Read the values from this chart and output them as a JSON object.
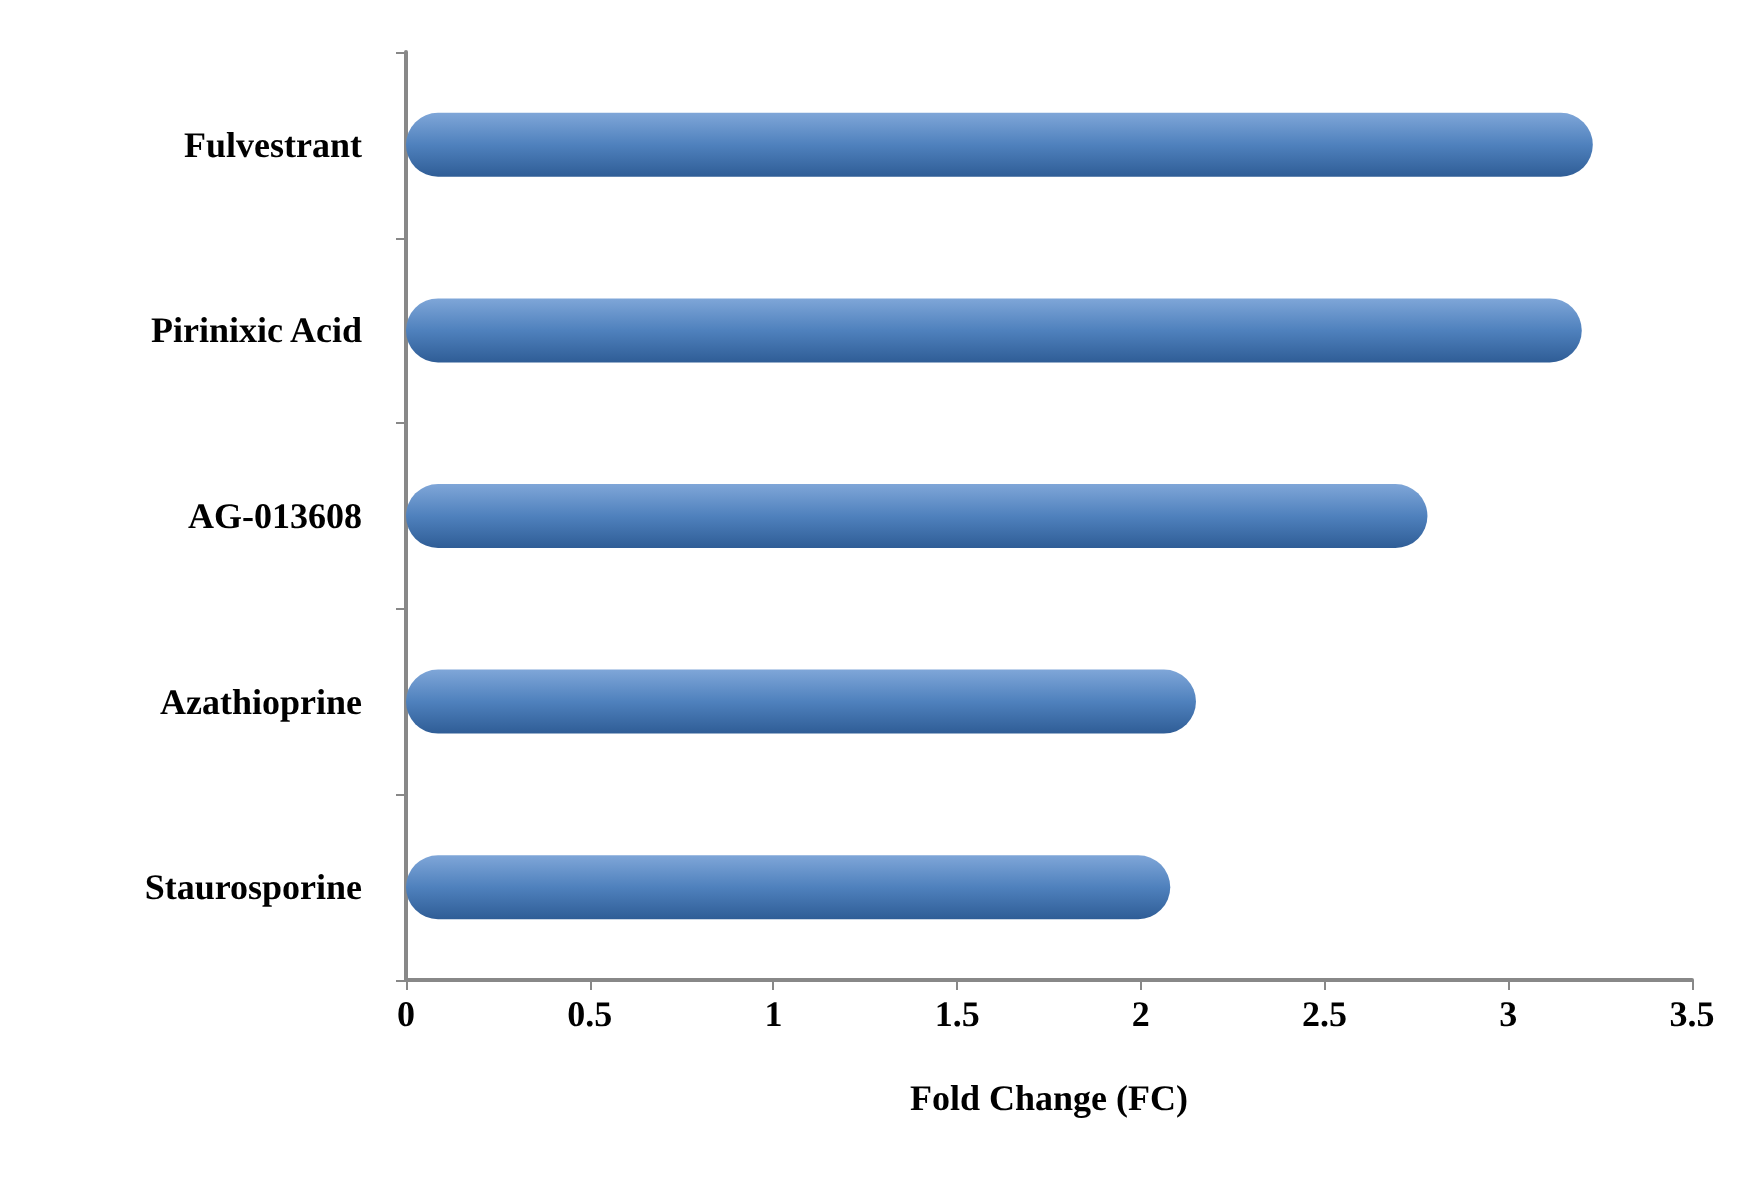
{
  "chart_data": {
    "type": "bar",
    "orientation": "horizontal",
    "xlabel": "Fold Change (FC)",
    "categories": [
      "Fulvestrant",
      "Pirinixic Acid",
      "AG-013608",
      "Azathioprine",
      "Staurosporine"
    ],
    "values": [
      3.23,
      3.2,
      2.78,
      2.15,
      2.08
    ],
    "color": "#4f81bd",
    "xlim": [
      0,
      3.5
    ],
    "xticks": [
      0,
      0.5,
      1,
      1.5,
      2,
      2.5,
      3,
      3.5
    ],
    "grid": false
  }
}
